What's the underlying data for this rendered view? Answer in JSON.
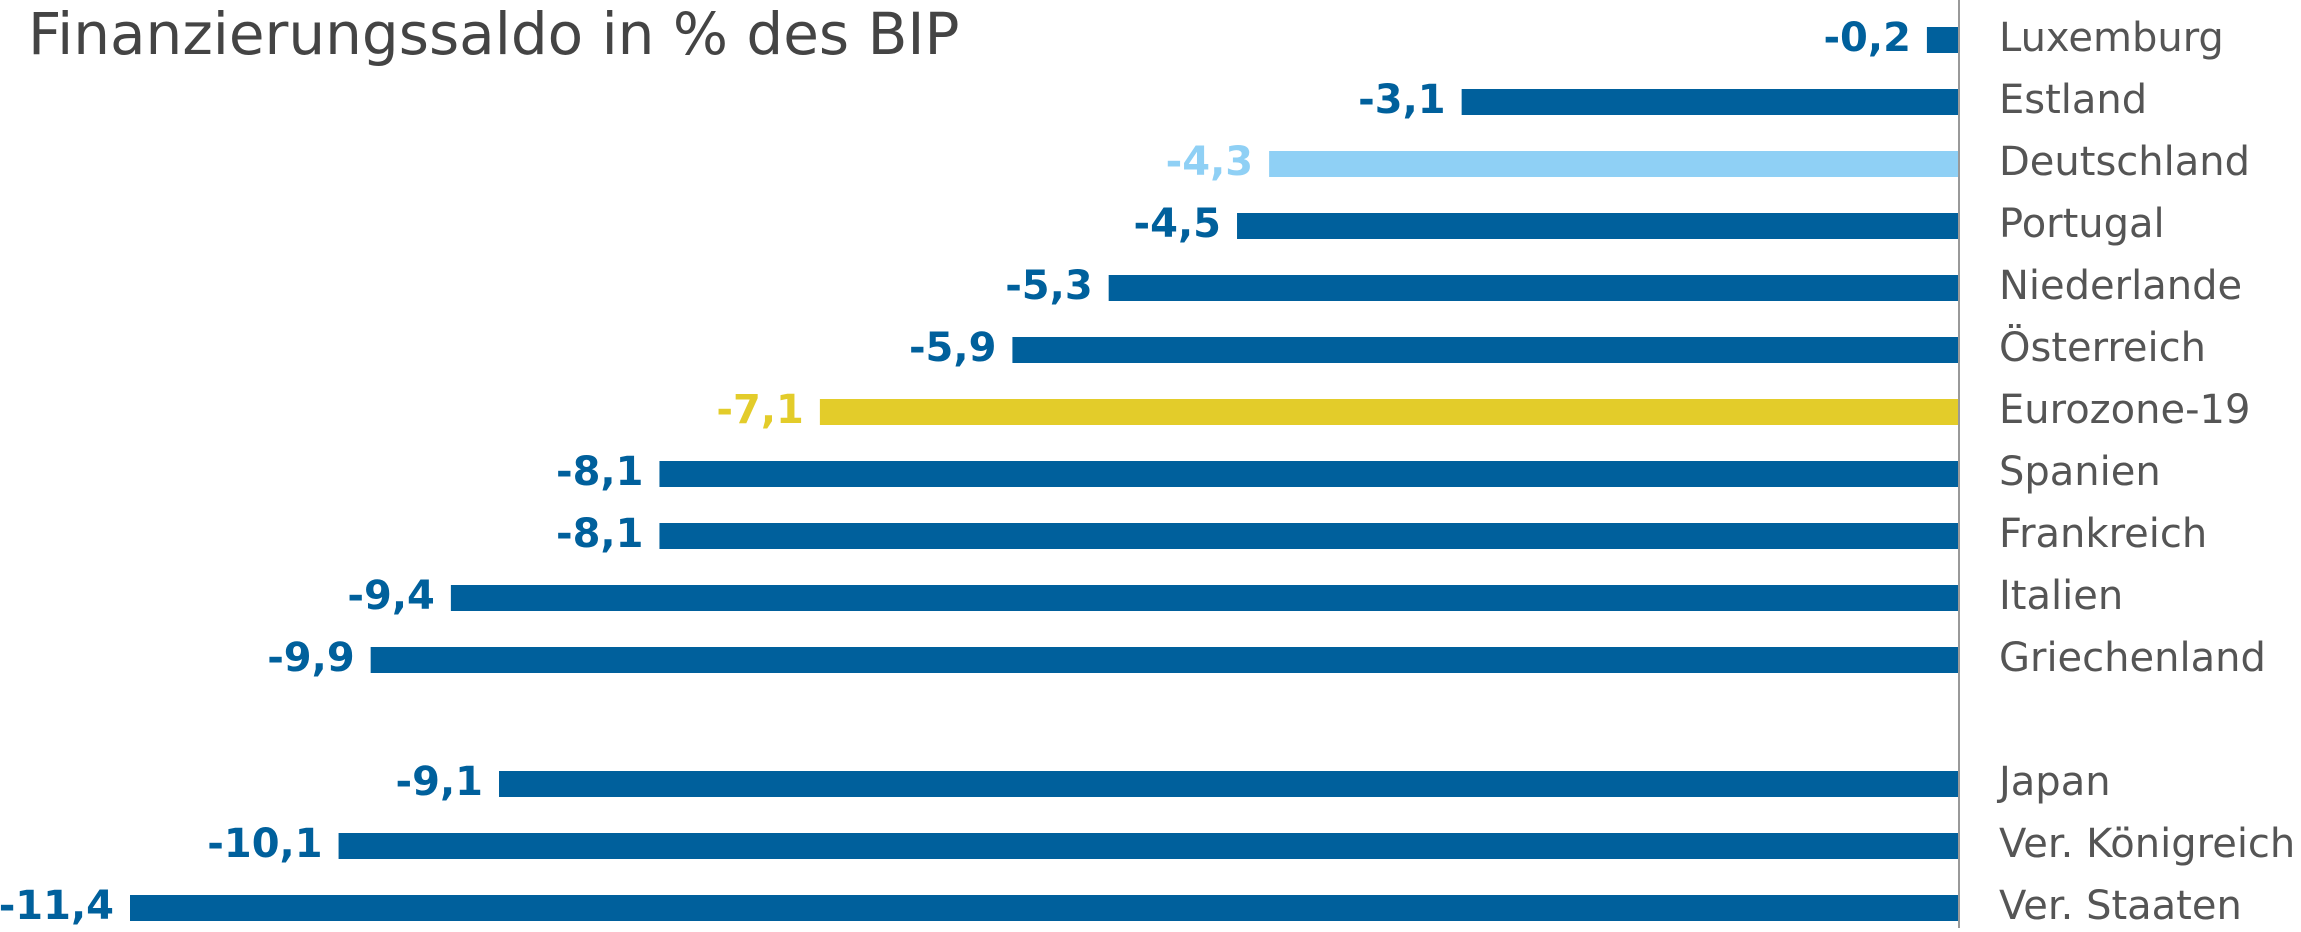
{
  "chart_data": {
    "type": "bar",
    "orientation": "horizontal",
    "title": "Finanzierungssaldo in % des BIP",
    "categories": [
      "Luxemburg",
      "Estland",
      "Deutschland",
      "Portugal",
      "Niederlande",
      "Österreich",
      "Eurozone-19",
      "Spanien",
      "Frankreich",
      "Italien",
      "Griechenland",
      null,
      "Japan",
      "Ver. Königreich",
      "Ver. Staaten"
    ],
    "values": [
      -0.2,
      -3.1,
      -4.3,
      -4.5,
      -5.3,
      -5.9,
      -7.1,
      -8.1,
      -8.1,
      -9.4,
      -9.9,
      null,
      -9.1,
      -10.1,
      -11.4
    ],
    "value_labels": [
      "-0,2",
      "-3,1",
      "-4,3",
      "-4,5",
      "-5,3",
      "-5,9",
      "-7,1",
      "-8,1",
      "-8,1",
      "-9,4",
      "-9,9",
      null,
      "-9,1",
      "-10,1",
      "-11,4"
    ],
    "colors": [
      "#00609c",
      "#00609c",
      "#8fd0f5",
      "#00609c",
      "#00609c",
      "#00609c",
      "#e3cc2a",
      "#00609c",
      "#00609c",
      "#00609c",
      "#00609c",
      null,
      "#00609c",
      "#00609c",
      "#00609c"
    ],
    "xlim": [
      -11.4,
      0
    ]
  }
}
